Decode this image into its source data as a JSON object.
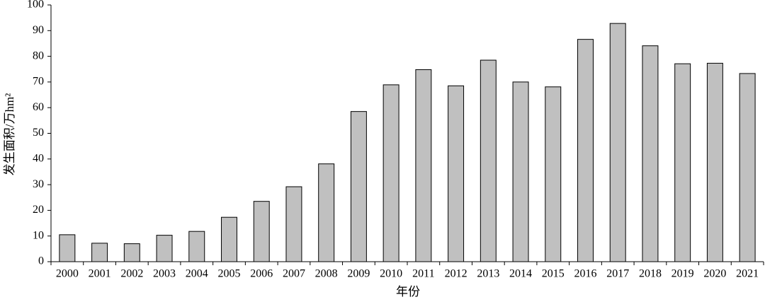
{
  "chart_data": {
    "type": "bar",
    "x_label": "年份",
    "y_label": "发生面积/万hm²",
    "categories": [
      "2000",
      "2001",
      "2002",
      "2003",
      "2004",
      "2005",
      "2006",
      "2007",
      "2008",
      "2009",
      "2010",
      "2011",
      "2012",
      "2013",
      "2014",
      "2015",
      "2016",
      "2017",
      "2018",
      "2019",
      "2020",
      "2021"
    ],
    "values": [
      10.5,
      7.2,
      7.0,
      10.3,
      11.8,
      17.3,
      23.5,
      29.2,
      38.1,
      58.5,
      68.9,
      74.8,
      68.5,
      78.5,
      70.0,
      68.1,
      86.6,
      92.8,
      84.1,
      77.1,
      77.3,
      73.3
    ],
    "color": "#c0c0c0",
    "ylim": [
      0,
      100
    ],
    "yticks": [
      0,
      10,
      20,
      30,
      40,
      50,
      60,
      70,
      80,
      90,
      100
    ],
    "grid": false
  }
}
